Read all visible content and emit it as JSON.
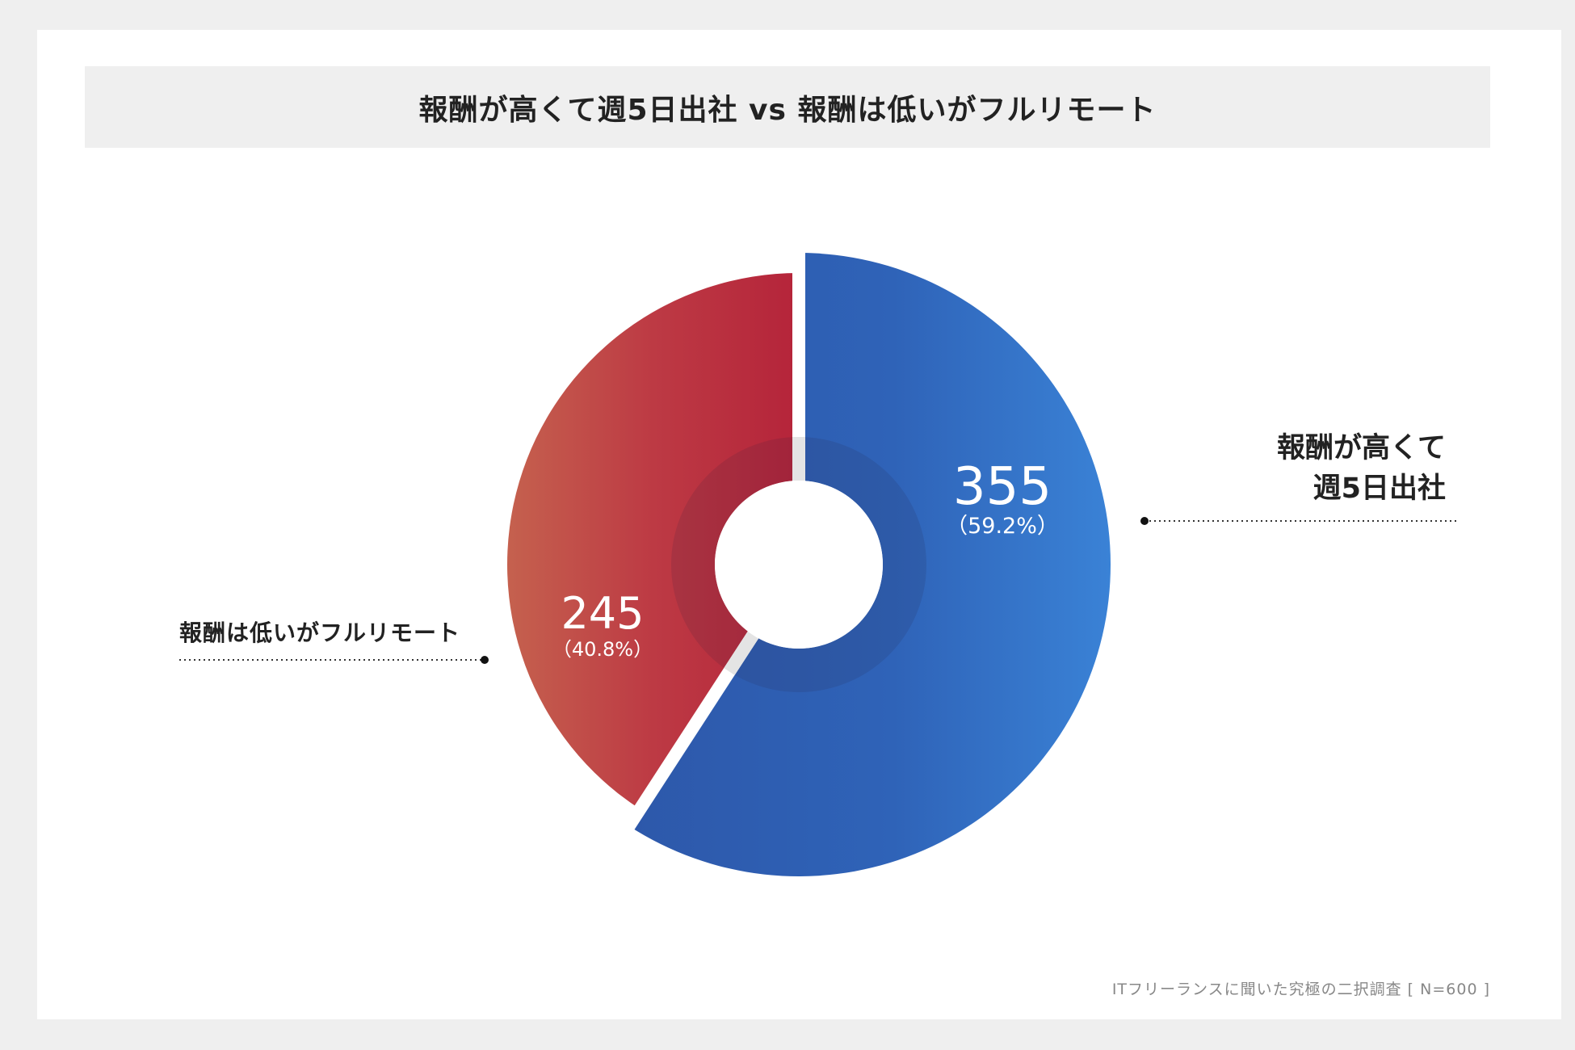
{
  "chart_data": {
    "type": "pie",
    "title": "報酬が高くて週5日出社 vs 報酬は低いがフルリモート",
    "categories": [
      "報酬が高くて週5日出社",
      "報酬は低いがフルリモート"
    ],
    "values": [
      355,
      245
    ],
    "percent_labels": [
      "（59.2%）",
      "（40.8%）"
    ],
    "value_labels": [
      "355",
      "245"
    ],
    "colors": [
      "#2f5fb3",
      "#b82838"
    ],
    "donut": true,
    "footnote": "ITフリーランスに聞いた究極の二択調査 [ N=600 ]"
  },
  "labels": {
    "right_line1": "報酬が高くて",
    "right_line2": "週5日出社",
    "left": "報酬は低いがフルリモート"
  }
}
